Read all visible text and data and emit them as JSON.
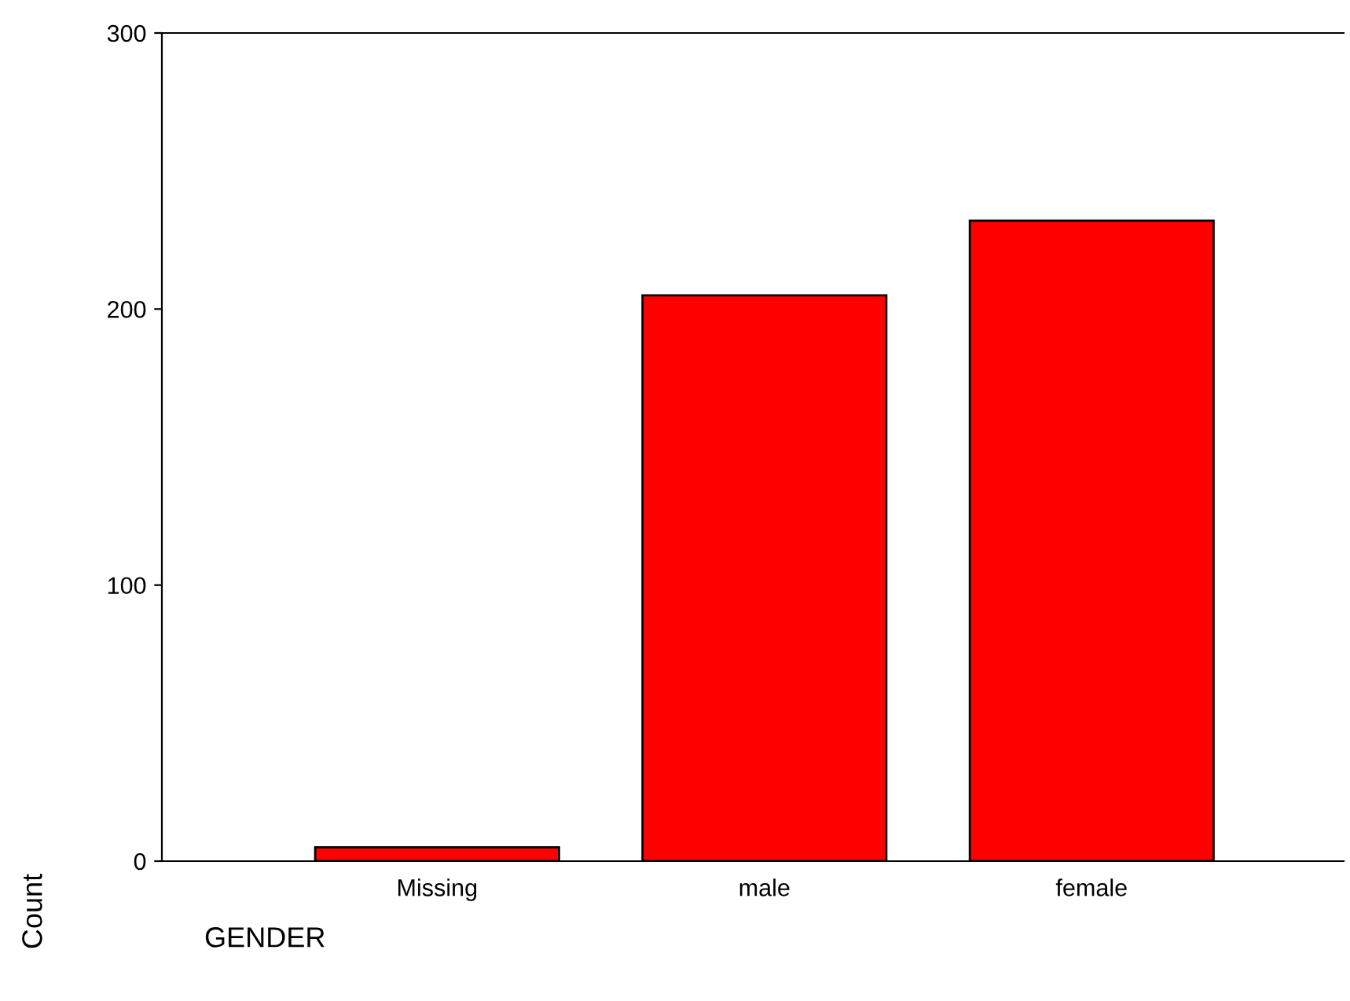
{
  "chart_data": {
    "type": "bar",
    "xlabel": "GENDER",
    "ylabel": "Count",
    "categories": [
      "Missing",
      "male",
      "female"
    ],
    "values": [
      5,
      205,
      232
    ],
    "color": "#ff0000",
    "ylim": [
      0,
      300
    ],
    "yticks": [
      0,
      100,
      200,
      300
    ],
    "grid": false
  }
}
